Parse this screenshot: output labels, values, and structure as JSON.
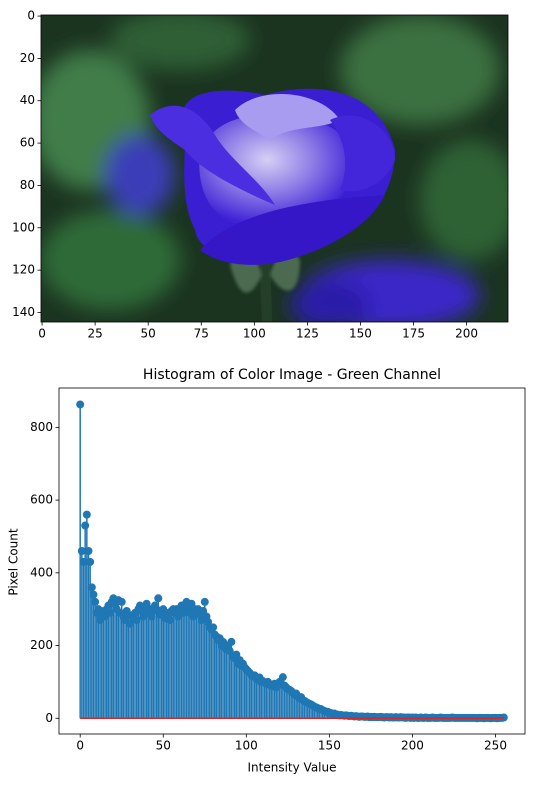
{
  "chart_data": [
    {
      "type": "image",
      "xlim": [
        -0.5,
        219.5
      ],
      "ylim": [
        144.5,
        -0.5
      ],
      "xticks": [
        0,
        25,
        50,
        75,
        100,
        125,
        150,
        175,
        200
      ],
      "yticks": [
        0,
        20,
        40,
        60,
        80,
        100,
        120,
        140
      ]
    },
    {
      "type": "stem",
      "title": "Histogram of Color Image - Green Channel",
      "x_label": "Intensity Value",
      "y_label": "Pixel Count",
      "color": "#1f77b4",
      "baseline_color": "#d62728",
      "xlim": [
        -12.75,
        267.75
      ],
      "ylim": [
        -43.25,
        908.25
      ],
      "xticks": [
        0,
        50,
        100,
        150,
        200,
        250
      ],
      "yticks": [
        0,
        200,
        400,
        600,
        800
      ],
      "x": [
        0,
        1,
        2,
        3,
        4,
        5,
        6,
        7,
        8,
        9,
        10,
        11,
        12,
        13,
        14,
        15,
        16,
        17,
        18,
        19,
        20,
        21,
        22,
        23,
        24,
        25,
        26,
        27,
        28,
        29,
        30,
        31,
        32,
        33,
        34,
        35,
        36,
        37,
        38,
        39,
        40,
        41,
        42,
        43,
        44,
        45,
        46,
        47,
        48,
        49,
        50,
        51,
        52,
        53,
        54,
        55,
        56,
        57,
        58,
        59,
        60,
        61,
        62,
        63,
        64,
        65,
        66,
        67,
        68,
        69,
        70,
        71,
        72,
        73,
        74,
        75,
        76,
        77,
        78,
        79,
        80,
        81,
        82,
        83,
        84,
        85,
        86,
        87,
        88,
        89,
        90,
        91,
        92,
        93,
        94,
        95,
        96,
        97,
        98,
        99,
        100,
        101,
        102,
        103,
        104,
        105,
        106,
        107,
        108,
        109,
        110,
        111,
        112,
        113,
        114,
        115,
        116,
        117,
        118,
        119,
        120,
        121,
        122,
        123,
        124,
        125,
        126,
        127,
        128,
        129,
        130,
        131,
        132,
        133,
        134,
        135,
        136,
        137,
        138,
        139,
        140,
        141,
        142,
        143,
        144,
        145,
        146,
        147,
        148,
        149,
        150,
        151,
        152,
        153,
        154,
        155,
        156,
        157,
        158,
        159,
        160,
        161,
        162,
        163,
        164,
        165,
        166,
        167,
        168,
        169,
        170,
        171,
        172,
        173,
        174,
        175,
        176,
        177,
        178,
        179,
        180,
        181,
        182,
        183,
        184,
        185,
        186,
        187,
        188,
        189,
        190,
        191,
        192,
        193,
        194,
        195,
        196,
        197,
        198,
        199,
        200,
        201,
        202,
        203,
        204,
        205,
        206,
        207,
        208,
        209,
        210,
        211,
        212,
        213,
        214,
        215,
        216,
        217,
        218,
        219,
        220,
        221,
        222,
        223,
        224,
        225,
        226,
        227,
        228,
        229,
        230,
        231,
        232,
        233,
        234,
        235,
        236,
        237,
        238,
        239,
        240,
        241,
        242,
        243,
        244,
        245,
        246,
        247,
        248,
        249,
        250,
        251,
        252,
        253,
        254,
        255
      ],
      "values": [
        863,
        460,
        430,
        530,
        560,
        460,
        430,
        360,
        340,
        320,
        290,
        300,
        270,
        285,
        295,
        280,
        300,
        310,
        290,
        320,
        330,
        315,
        300,
        325,
        290,
        320,
        280,
        270,
        295,
        285,
        260,
        280,
        275,
        290,
        270,
        300,
        310,
        295,
        280,
        305,
        315,
        290,
        300,
        280,
        295,
        310,
        300,
        330,
        285,
        290,
        300,
        275,
        290,
        285,
        270,
        295,
        300,
        290,
        300,
        280,
        295,
        310,
        290,
        300,
        320,
        305,
        290,
        315,
        280,
        300,
        290,
        300,
        285,
        270,
        295,
        320,
        280,
        265,
        250,
        245,
        250,
        230,
        225,
        215,
        220,
        200,
        210,
        195,
        190,
        200,
        185,
        210,
        170,
        165,
        175,
        150,
        160,
        145,
        150,
        140,
        135,
        130,
        125,
        120,
        115,
        118,
        110,
        105,
        112,
        100,
        102,
        98,
        95,
        100,
        92,
        90,
        88,
        95,
        85,
        90,
        100,
        95,
        113,
        90,
        85,
        80,
        78,
        75,
        70,
        65,
        68,
        60,
        55,
        58,
        50,
        48,
        45,
        42,
        40,
        38,
        35,
        32,
        30,
        28,
        26,
        25,
        22,
        20,
        18,
        18,
        15,
        14,
        12,
        13,
        10,
        10,
        8,
        9,
        8,
        7,
        8,
        7,
        6,
        7,
        6,
        5,
        6,
        5,
        4,
        5,
        5,
        4,
        4,
        5,
        3,
        4,
        3,
        4,
        3,
        3,
        3,
        4,
        3,
        2,
        3,
        3,
        2,
        3,
        2,
        2,
        3,
        2,
        2,
        3,
        2,
        2,
        1,
        2,
        2,
        1,
        2,
        1,
        2,
        1,
        1,
        2,
        1,
        1,
        2,
        1,
        1,
        1,
        2,
        1,
        1,
        1,
        1,
        2,
        1,
        1,
        1,
        1,
        1,
        1,
        2,
        1,
        1,
        1,
        1,
        1,
        1,
        1,
        1,
        1,
        1,
        1,
        1,
        1,
        1,
        0,
        1,
        1,
        1,
        0,
        1,
        1,
        1,
        0,
        1,
        1,
        1,
        0,
        1,
        1,
        1,
        2
      ]
    }
  ]
}
